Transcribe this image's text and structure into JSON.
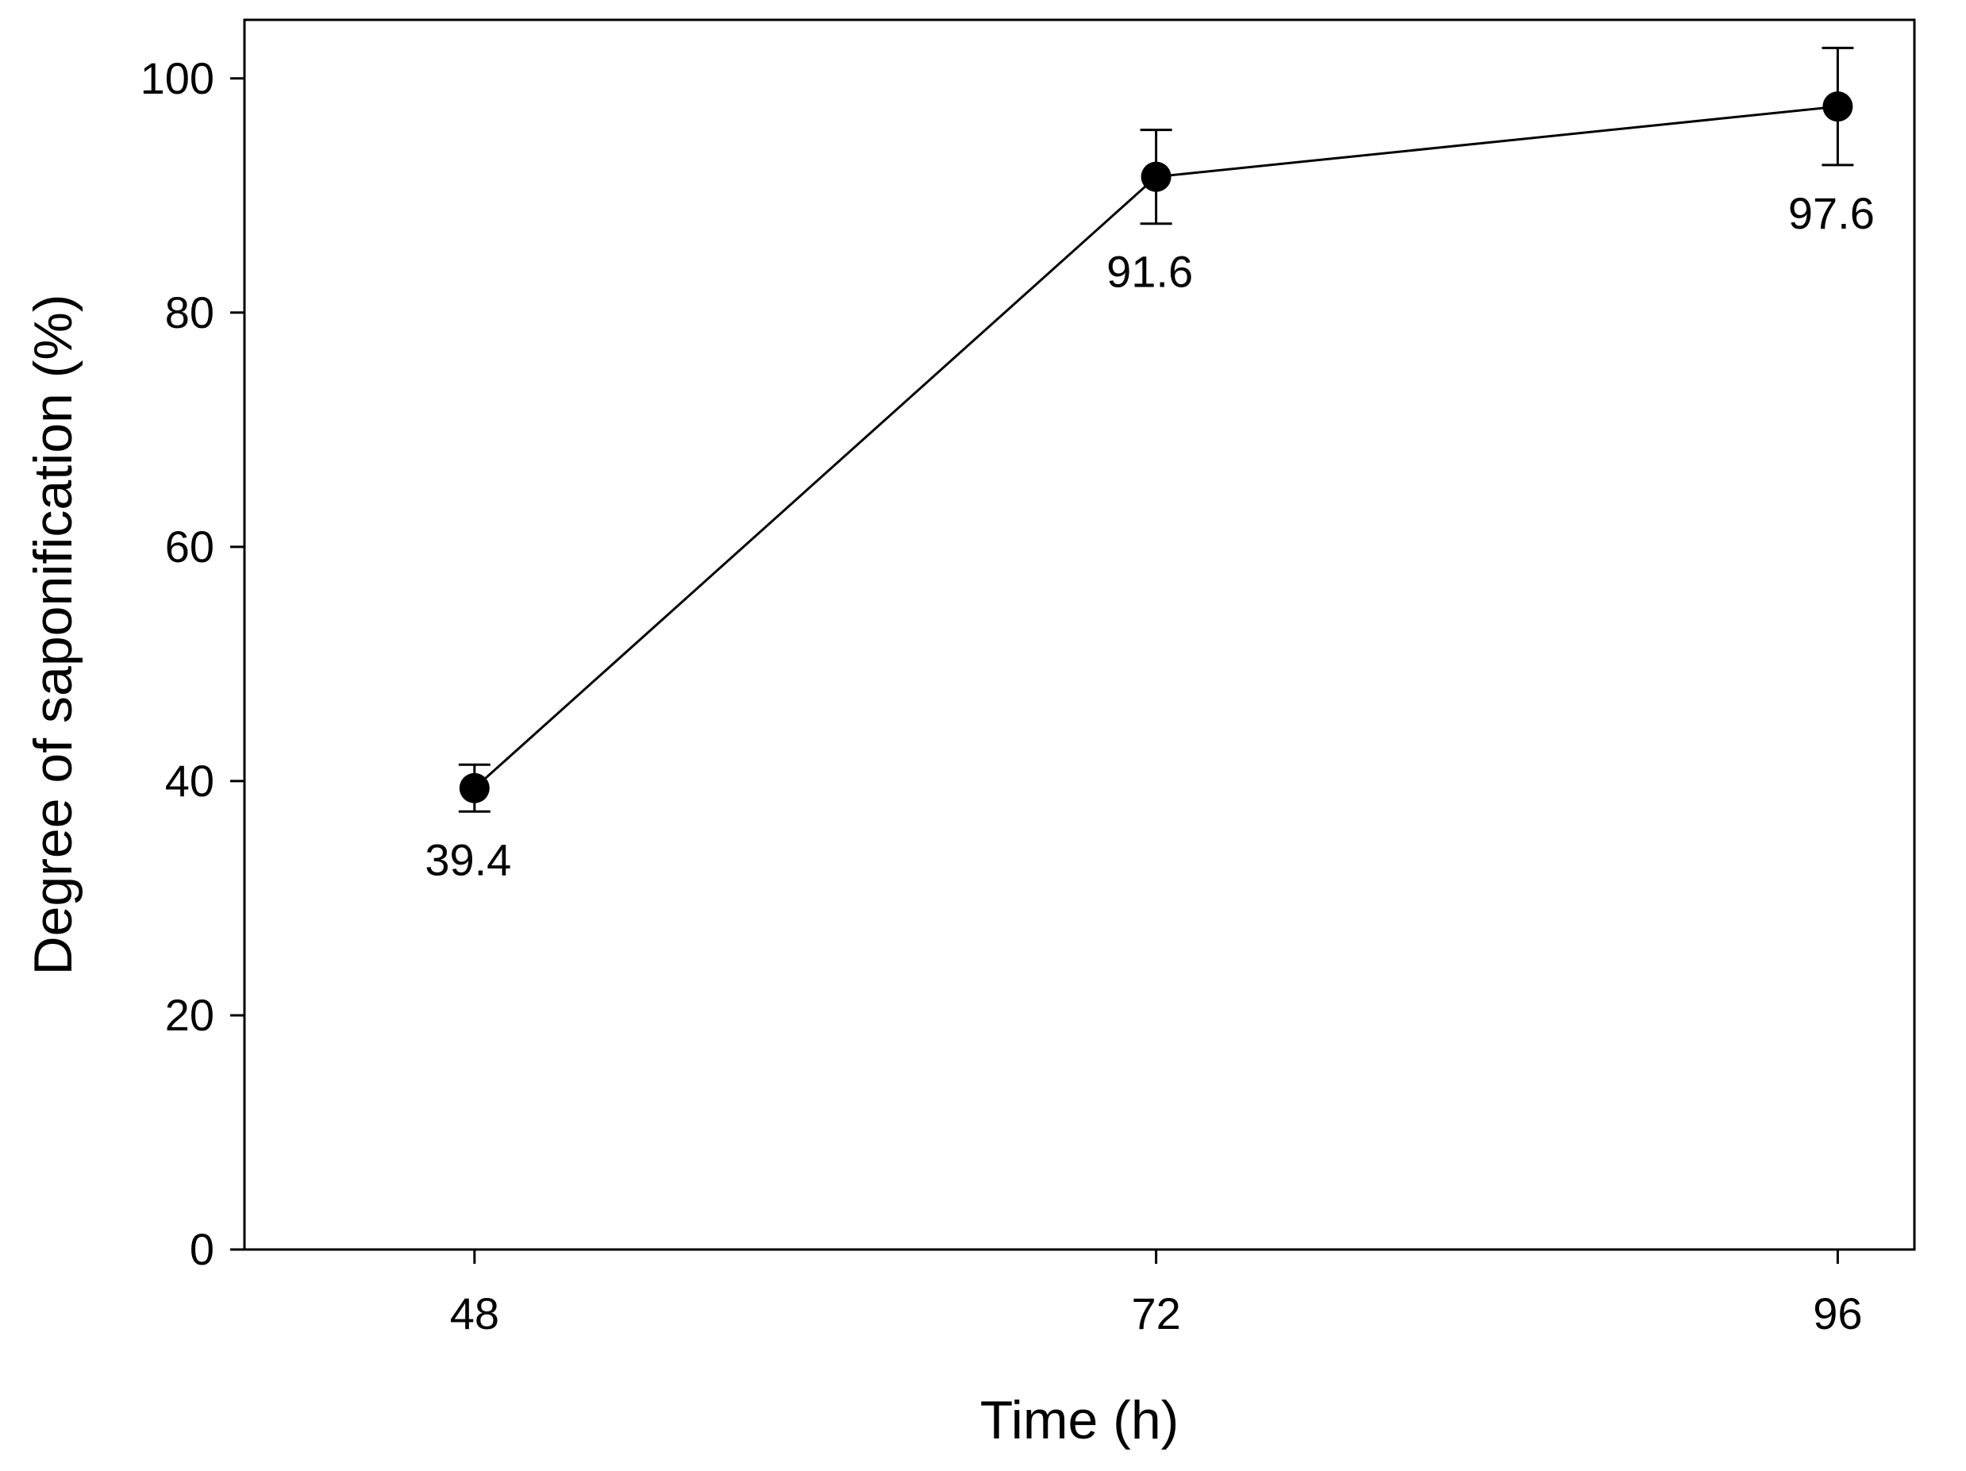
{
  "chart_data": {
    "type": "line",
    "title": "",
    "xlabel": "Time (h)",
    "ylabel": "Degree of saponification (%)",
    "x": [
      48,
      72,
      96
    ],
    "xticks": [
      "48",
      "72",
      "96"
    ],
    "xlim": [
      39.9,
      98.7
    ],
    "ylim": [
      0,
      105
    ],
    "yticks": [
      0,
      20,
      40,
      60,
      80,
      100
    ],
    "series": [
      {
        "name": "",
        "values": [
          39.4,
          91.6,
          97.6
        ],
        "error": [
          2.0,
          4.0,
          5.0
        ],
        "data_labels": [
          "39.4",
          "91.6",
          "97.6"
        ],
        "color": "#000000",
        "marker": "filled-circle"
      }
    ],
    "grid": false,
    "legend": "none"
  }
}
